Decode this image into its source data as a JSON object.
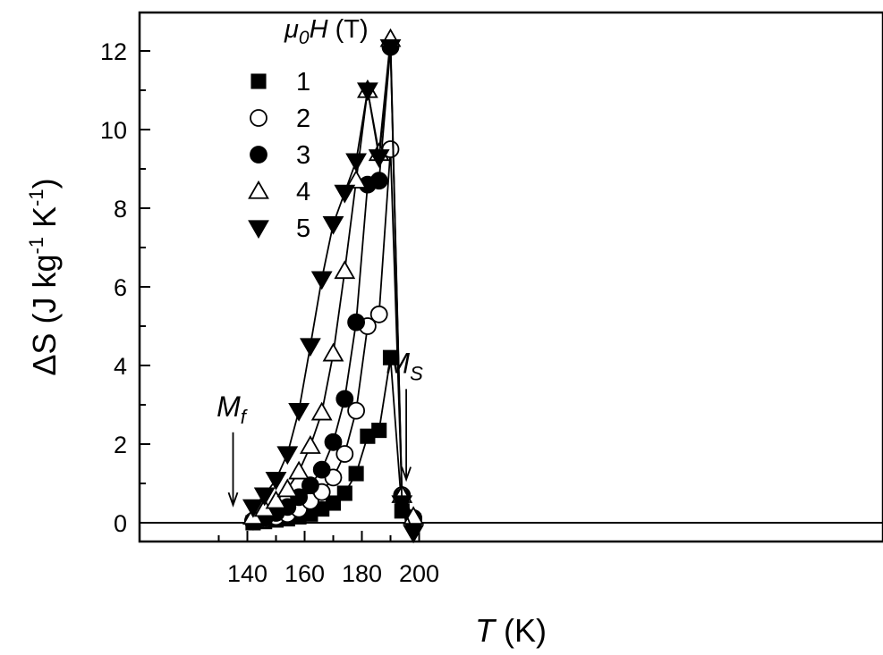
{
  "chart_data": {
    "type": "line",
    "xlabel_italic": "T",
    "xlabel_rest": " (K)",
    "ylabel_delta": "ΔS",
    "ylabel_units": " (J kg",
    "ylabel_exp1": "-1",
    "ylabel_mid": " K",
    "ylabel_exp2": "-1",
    "ylabel_close": ")",
    "xlim": [
      130,
      205
    ],
    "ylim": [
      -0.5,
      13
    ],
    "x_ticks": [
      140,
      160,
      180,
      200
    ],
    "y_ticks": [
      0,
      2,
      4,
      6,
      8,
      10,
      12
    ],
    "x_tick_labels": [
      "140",
      "160",
      "180",
      "200"
    ],
    "y_tick_labels": [
      "0",
      "2",
      "4",
      "6",
      "8",
      "10",
      "12"
    ],
    "legend": {
      "title_main": "μ",
      "title_sub": "0",
      "title_italic": "H",
      "title_units": " (T)",
      "position": "top-left"
    },
    "annotations": [
      {
        "id": "mf",
        "label": "M",
        "sub": "f",
        "x": 135,
        "arrow_from": 2.3,
        "arrow_to": 0.45
      },
      {
        "id": "ms",
        "label": "M",
        "sub": "S",
        "x": 195.5,
        "arrow_from": 3.4,
        "arrow_to": 1.1
      }
    ],
    "series": [
      {
        "name": "1",
        "marker": "square",
        "filled": true,
        "x": [
          142,
          146,
          150,
          154,
          158,
          162,
          166,
          170,
          174,
          178,
          182,
          186,
          190,
          194,
          198
        ],
        "y": [
          0.0,
          0.03,
          0.07,
          0.1,
          0.15,
          0.22,
          0.35,
          0.5,
          0.75,
          1.25,
          2.2,
          2.35,
          4.2,
          0.3,
          0.05
        ]
      },
      {
        "name": "2",
        "marker": "circle",
        "filled": false,
        "x": [
          142,
          146,
          150,
          154,
          158,
          162,
          166,
          170,
          174,
          178,
          182,
          186,
          190,
          194,
          198
        ],
        "y": [
          0.03,
          0.08,
          0.15,
          0.22,
          0.35,
          0.55,
          0.78,
          1.15,
          1.75,
          2.85,
          5.0,
          5.3,
          9.5,
          0.7,
          0.12
        ]
      },
      {
        "name": "3",
        "marker": "circle",
        "filled": true,
        "x": [
          142,
          146,
          150,
          154,
          158,
          162,
          166,
          170,
          174,
          178,
          182,
          186,
          190,
          194,
          198
        ],
        "y": [
          0.05,
          0.12,
          0.25,
          0.4,
          0.65,
          0.95,
          1.35,
          2.05,
          3.15,
          5.1,
          8.6,
          8.7,
          12.1,
          0.65,
          0.1
        ]
      },
      {
        "name": "4",
        "marker": "triangle-up",
        "filled": false,
        "x": [
          142,
          146,
          150,
          154,
          158,
          162,
          166,
          170,
          174,
          178,
          182,
          186,
          190,
          194,
          198
        ],
        "y": [
          0.15,
          0.35,
          0.55,
          0.85,
          1.3,
          1.95,
          2.8,
          4.3,
          6.4,
          8.7,
          11.0,
          9.4,
          12.3,
          0.7,
          0.15
        ]
      },
      {
        "name": "5",
        "marker": "triangle-down",
        "filled": true,
        "x": [
          142,
          146,
          150,
          154,
          158,
          162,
          166,
          170,
          174,
          178,
          182,
          186,
          190,
          194,
          198
        ],
        "y": [
          0.4,
          0.7,
          1.1,
          1.75,
          2.85,
          4.5,
          6.2,
          7.6,
          8.4,
          9.2,
          11.0,
          9.3,
          12.1,
          0.5,
          -0.25
        ]
      }
    ]
  }
}
